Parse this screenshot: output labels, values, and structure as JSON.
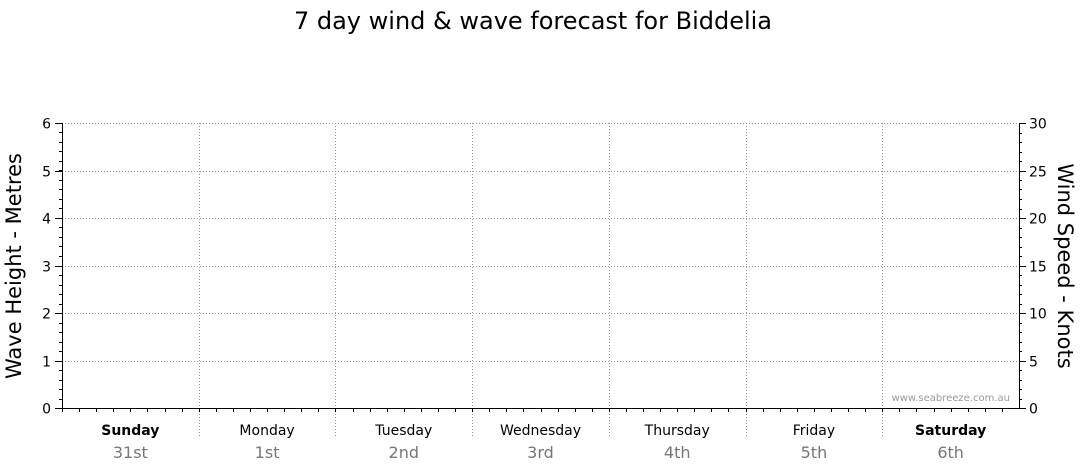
{
  "chart_data": {
    "type": "line",
    "title": "7 day wind & wave forecast for Biddelia",
    "ylabel": "Wave Height - Metres",
    "y2label": "Wind Speed - Knots",
    "ylim": [
      0,
      6
    ],
    "y2lim": [
      0,
      30
    ],
    "y_ticks": [
      "0",
      "1",
      "2",
      "3",
      "4",
      "5",
      "6"
    ],
    "y2_ticks": [
      "0",
      "5",
      "10",
      "15",
      "20",
      "25",
      "30"
    ],
    "days": [
      {
        "name": "Sunday",
        "date": "31st",
        "bold": true
      },
      {
        "name": "Monday",
        "date": "1st",
        "bold": false
      },
      {
        "name": "Tuesday",
        "date": "2nd",
        "bold": false
      },
      {
        "name": "Wednesday",
        "date": "3rd",
        "bold": false
      },
      {
        "name": "Thursday",
        "date": "4th",
        "bold": false
      },
      {
        "name": "Friday",
        "date": "5th",
        "bold": false
      },
      {
        "name": "Saturday",
        "date": "6th",
        "bold": true
      }
    ],
    "series": [],
    "grid": true,
    "watermark": "www.seabreeze.com.au"
  }
}
